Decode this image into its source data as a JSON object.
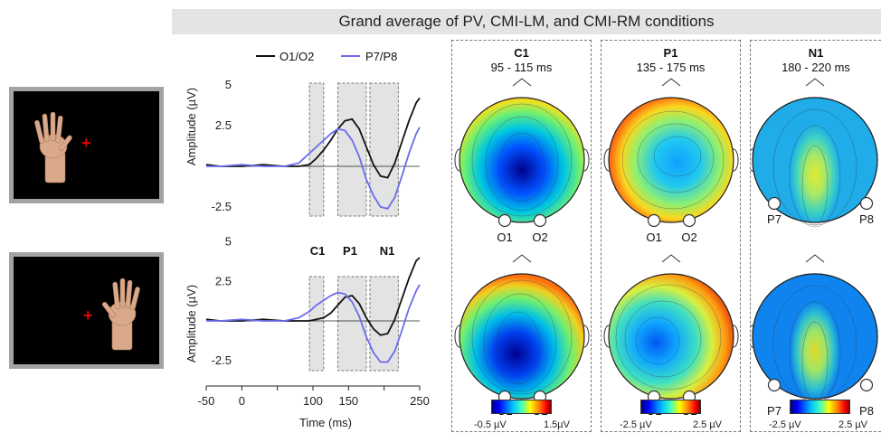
{
  "header": {
    "title": "Grand average of PV, CMI-LM, and CMI-RM conditions"
  },
  "stimuli": [
    {
      "name": "left-hand-stimulus",
      "fixation": "+"
    },
    {
      "name": "right-hand-stimulus",
      "fixation": "+"
    }
  ],
  "erp": {
    "legend": [
      "O1/O2",
      "P7/P8"
    ],
    "series_colors": {
      "O1/O2": "#111111",
      "P7/P8": "#6b6bf0"
    },
    "ylabel": "Amplitude (µV)",
    "xlabel": "Time (ms)",
    "y_ticks": [
      "5",
      "2.5",
      "-2.5"
    ],
    "x_ticks": [
      "-50",
      "0",
      "100",
      "150",
      "250"
    ],
    "window_labels": [
      "C1",
      "P1",
      "N1"
    ]
  },
  "chart_data": {
    "type": "line",
    "title": "",
    "xlabel": "Time (ms)",
    "ylabel": "Amplitude (µV)",
    "xlim": [
      -50,
      250
    ],
    "ylim": [
      -3,
      5
    ],
    "windows": [
      {
        "label": "C1",
        "range": [
          95,
          115
        ]
      },
      {
        "label": "P1",
        "range": [
          135,
          175
        ]
      },
      {
        "label": "N1",
        "range": [
          180,
          220
        ]
      }
    ],
    "panels": [
      {
        "series": [
          {
            "name": "O1/O2",
            "x": [
              -50,
              -30,
              0,
              30,
              60,
              80,
              95,
              105,
              115,
              125,
              135,
              145,
              155,
              165,
              175,
              185,
              195,
              205,
              215,
              225,
              235,
              245,
              250
            ],
            "y": [
              0.1,
              0,
              0,
              0.1,
              0,
              0,
              0.1,
              0.5,
              1.0,
              1.6,
              2.3,
              2.8,
              2.9,
              2.3,
              1.2,
              0.1,
              -0.6,
              -0.7,
              0.2,
              1.5,
              2.8,
              3.9,
              4.2
            ]
          },
          {
            "name": "P7/P8",
            "x": [
              -50,
              -30,
              0,
              30,
              60,
              80,
              95,
              105,
              115,
              125,
              135,
              145,
              155,
              165,
              175,
              185,
              195,
              205,
              215,
              225,
              235,
              245,
              250
            ],
            "y": [
              0,
              0,
              0.1,
              0,
              0,
              0.2,
              0.8,
              1.2,
              1.6,
              2.0,
              2.3,
              2.2,
              1.6,
              0.6,
              -0.8,
              -1.8,
              -2.5,
              -2.6,
              -1.9,
              -0.6,
              0.8,
              2.0,
              2.4
            ]
          }
        ]
      },
      {
        "series": [
          {
            "name": "O1/O2",
            "x": [
              -50,
              -30,
              0,
              30,
              60,
              80,
              95,
              105,
              115,
              125,
              135,
              145,
              155,
              165,
              175,
              185,
              195,
              205,
              215,
              225,
              235,
              245,
              250
            ],
            "y": [
              0.1,
              0,
              0,
              0.1,
              0,
              0,
              0,
              0.1,
              0.2,
              0.5,
              1.0,
              1.5,
              1.6,
              1.1,
              0.2,
              -0.5,
              -0.9,
              -0.8,
              0.1,
              1.4,
              2.7,
              3.8,
              4.0
            ]
          },
          {
            "name": "P7/P8",
            "x": [
              -50,
              -30,
              0,
              30,
              60,
              80,
              95,
              105,
              115,
              125,
              135,
              145,
              155,
              165,
              175,
              185,
              195,
              205,
              215,
              225,
              235,
              245,
              250
            ],
            "y": [
              0,
              0,
              0.1,
              0,
              0,
              0.2,
              0.6,
              1.0,
              1.3,
              1.6,
              1.8,
              1.7,
              1.2,
              0.3,
              -1.0,
              -2.0,
              -2.6,
              -2.6,
              -1.9,
              -0.6,
              0.8,
              1.9,
              2.3
            ]
          }
        ]
      }
    ]
  },
  "topo_panels": [
    {
      "title": "C1",
      "subtitle": "95 - 115 ms",
      "electrodes": [
        "O1",
        "O2"
      ],
      "cbar_min": "-0.5 µV",
      "cbar_max": "1.5µV"
    },
    {
      "title": "P1",
      "subtitle": "135 - 175 ms",
      "electrodes": [
        "O1",
        "O2"
      ],
      "cbar_min": "-2.5 µV",
      "cbar_max": "2.5 µV"
    },
    {
      "title": "N1",
      "subtitle": "180 - 220 ms",
      "electrodes": [
        "P7",
        "P8"
      ],
      "cbar_min": "-2.5 µV",
      "cbar_max": "2.5 µV"
    }
  ]
}
